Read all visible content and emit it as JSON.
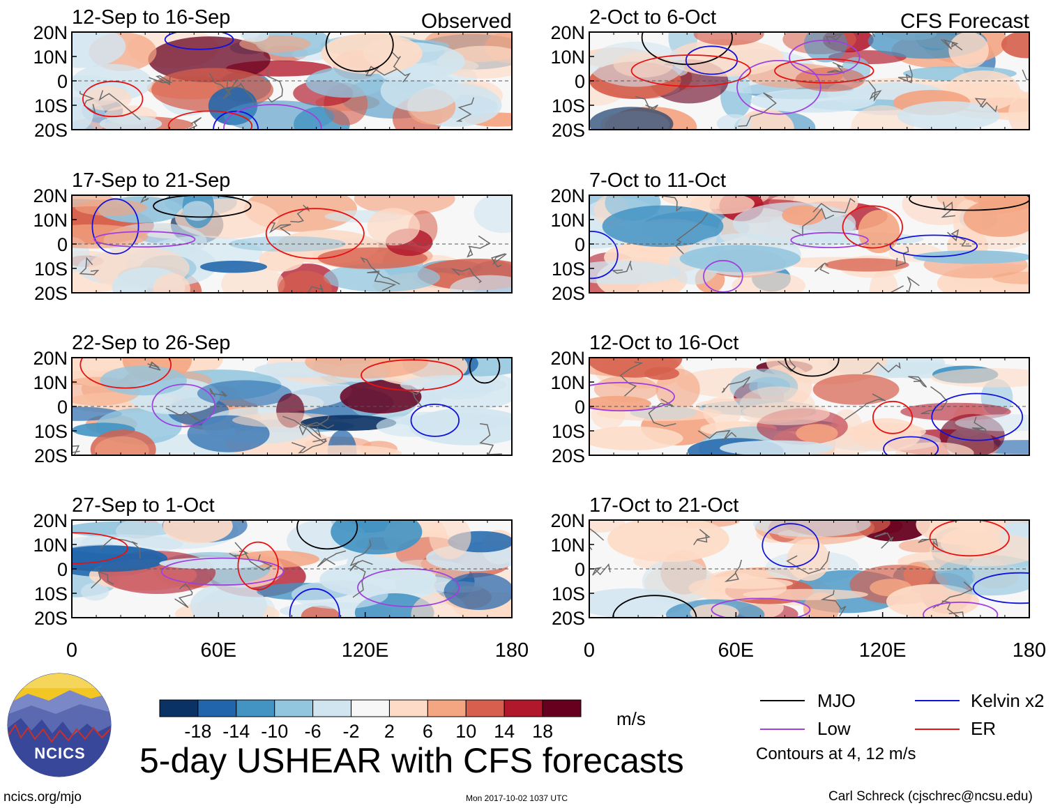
{
  "header": {
    "observed_label": "Observed",
    "forecast_label": "CFS Forecast"
  },
  "chart_data": {
    "type": "heatmap",
    "title": "5-day USHEAR with CFS forecasts",
    "variable": "USHEAR",
    "units": "m/s",
    "x_ticks": [
      "0",
      "60E",
      "120E",
      "180"
    ],
    "y_ticks": [
      "20N",
      "10N",
      "0",
      "10S",
      "20S"
    ],
    "x_range": [
      0,
      180
    ],
    "y_range": [
      -20,
      20
    ],
    "colorbar": {
      "labels": [
        "-18",
        "-14",
        "-10",
        "-6",
        "-2",
        "2",
        "6",
        "10",
        "14",
        "18"
      ],
      "colors": [
        "#0b3264",
        "#2166ac",
        "#4393c3",
        "#92c5de",
        "#d1e5f0",
        "#f7f7f7",
        "#fddbc7",
        "#f4a582",
        "#d6604d",
        "#b2182b",
        "#67001f"
      ]
    },
    "panels": [
      {
        "period": "12-Sep to 16-Sep",
        "source": "Observed"
      },
      {
        "period": "17-Sep to 21-Sep",
        "source": "Observed"
      },
      {
        "period": "22-Sep to 26-Sep",
        "source": "Observed"
      },
      {
        "period": "27-Sep to 1-Oct",
        "source": "Observed"
      },
      {
        "period": "2-Oct to 6-Oct",
        "source": "CFS Forecast"
      },
      {
        "period": "7-Oct to 11-Oct",
        "source": "CFS Forecast"
      },
      {
        "period": "12-Oct to 16-Oct",
        "source": "CFS Forecast"
      },
      {
        "period": "17-Oct to 21-Oct",
        "source": "CFS Forecast"
      }
    ],
    "contour_legend": [
      {
        "name": "MJO",
        "color": "#000000"
      },
      {
        "name": "Kelvin x2",
        "color": "#1010e0"
      },
      {
        "name": "Low",
        "color": "#a040e0"
      },
      {
        "name": "ER",
        "color": "#e81010"
      }
    ],
    "contour_note": "Contours at 4, 12 m/s"
  },
  "footer": {
    "site": "ncics.org/mjo",
    "timestamp": "Mon 2017-10-02 1037 UTC",
    "author": "Carl Schreck (cjschrec@ncsu.edu)"
  },
  "logo": {
    "text": "NCICS"
  }
}
